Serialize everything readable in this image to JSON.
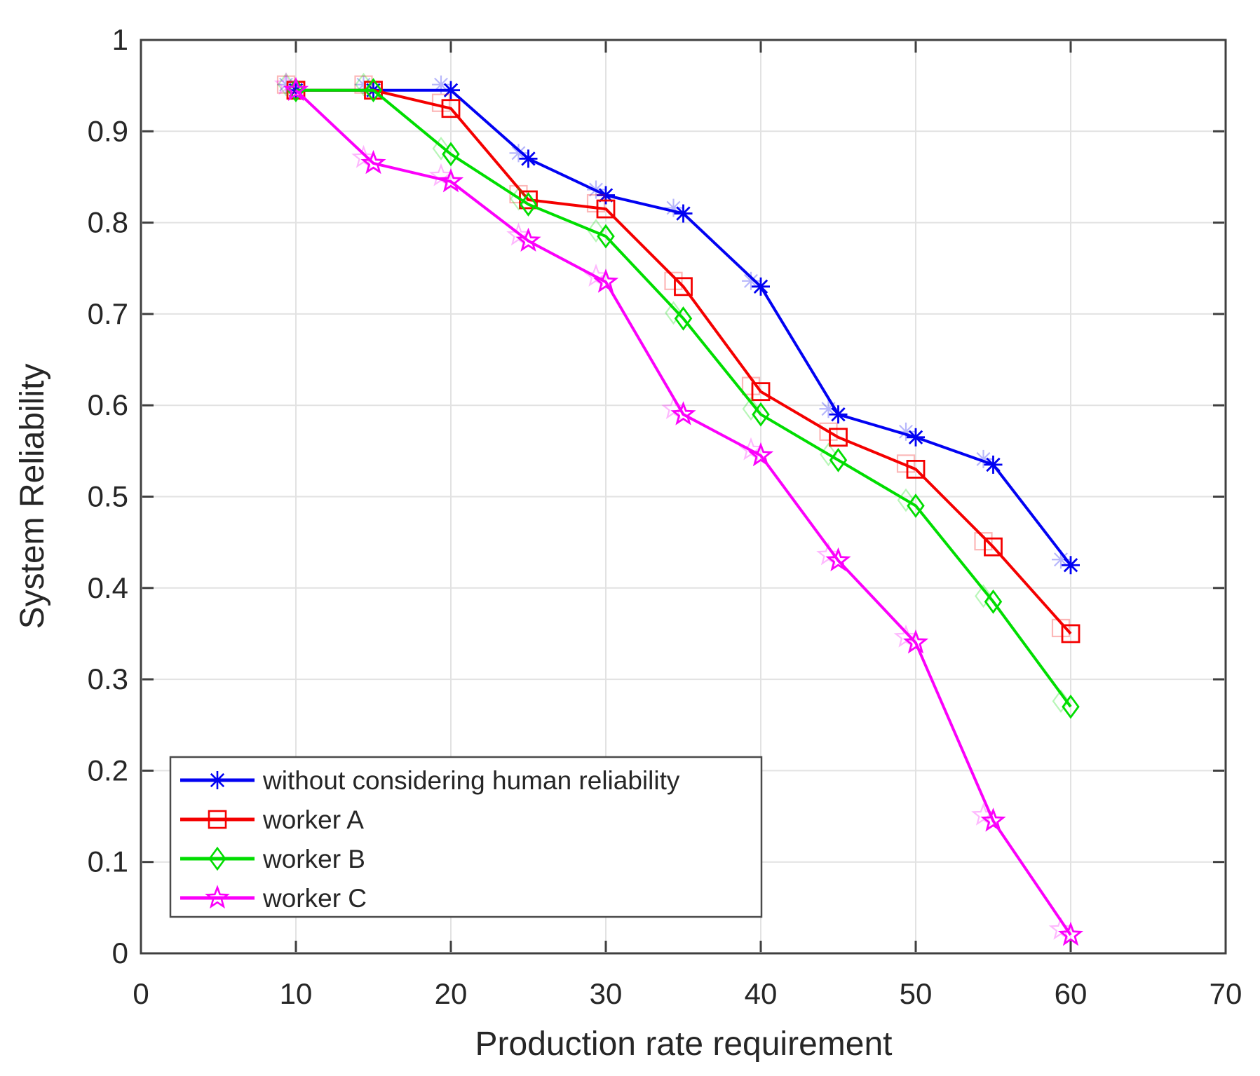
{
  "figure": {
    "background": "#ffffff",
    "axis_color": "#3f3f3f",
    "grid_color": "#e2e2e2",
    "tick_label_color": "#262626"
  },
  "chart_data": {
    "type": "line",
    "title": "",
    "xlabel": "Production rate requirement",
    "ylabel": "System Reliability",
    "xlim": [
      0,
      70
    ],
    "ylim": [
      0,
      1
    ],
    "xticks": [
      0,
      10,
      20,
      30,
      40,
      50,
      60,
      70
    ],
    "xtick_labels": [
      "0",
      "10",
      "20",
      "30",
      "40",
      "50",
      "60",
      "70"
    ],
    "yticks": [
      0,
      0.1,
      0.2,
      0.3,
      0.4,
      0.5,
      0.6,
      0.7,
      0.8,
      0.9,
      1
    ],
    "ytick_labels": [
      "0",
      "0.1",
      "0.2",
      "0.3",
      "0.4",
      "0.5",
      "0.6",
      "0.7",
      "0.8",
      "0.9",
      "1"
    ],
    "grid": true,
    "legend_position": "bottom-left",
    "x": [
      10,
      15,
      20,
      25,
      30,
      35,
      40,
      45,
      50,
      55,
      60
    ],
    "series": [
      {
        "name": "without considering human reliability",
        "color": "#0202f2",
        "marker": "asterisk",
        "values": [
          0.945,
          0.945,
          0.945,
          0.87,
          0.83,
          0.81,
          0.73,
          0.59,
          0.565,
          0.535,
          0.425
        ]
      },
      {
        "name": "worker A",
        "color": "#f40000",
        "marker": "square",
        "values": [
          0.945,
          0.945,
          0.925,
          0.825,
          0.815,
          0.73,
          0.615,
          0.565,
          0.53,
          0.445,
          0.35
        ]
      },
      {
        "name": "worker B",
        "color": "#00dd00",
        "marker": "diamond",
        "values": [
          0.945,
          0.945,
          0.875,
          0.82,
          0.785,
          0.695,
          0.59,
          0.54,
          0.49,
          0.385,
          0.27
        ]
      },
      {
        "name": "worker C",
        "color": "#fb00fb",
        "marker": "pentagram",
        "values": [
          0.945,
          0.865,
          0.845,
          0.78,
          0.735,
          0.59,
          0.545,
          0.43,
          0.34,
          0.145,
          0.02
        ]
      }
    ]
  }
}
